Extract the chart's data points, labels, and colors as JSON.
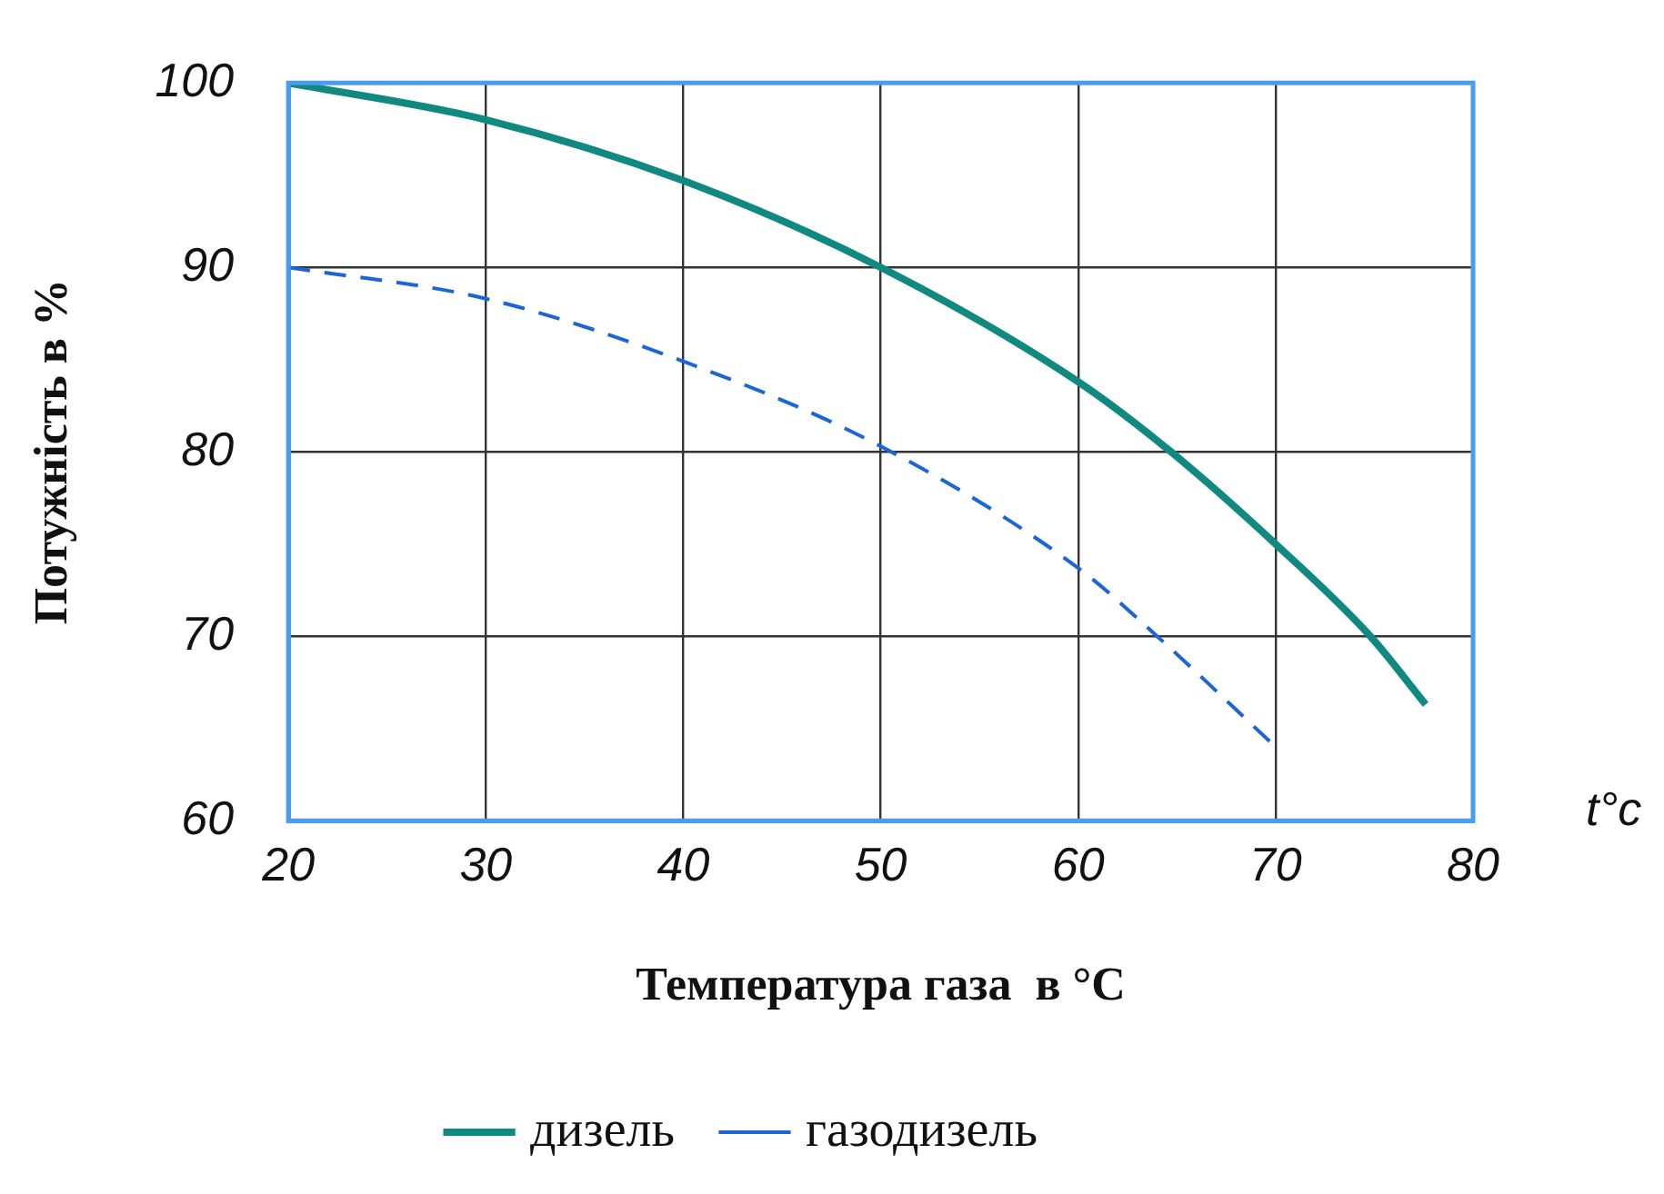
{
  "chart_data": {
    "type": "line",
    "xlabel": "Температура газа  в °C",
    "ylabel": "Потужність в %",
    "annotations": [
      "t°c"
    ],
    "xlim": [
      20,
      80
    ],
    "xticks": [
      20,
      30,
      40,
      50,
      60,
      70,
      80
    ],
    "ylim": [
      60,
      100
    ],
    "yticks": [
      60,
      70,
      80,
      90,
      100
    ],
    "grid": true,
    "legend": "bottom",
    "marker": "none",
    "series": [
      {
        "name": "дизель",
        "color": "#108a80",
        "line_style": "solid",
        "x": [
          20,
          30,
          40,
          50,
          60,
          64.7,
          70,
          74.8,
          77.6
        ],
        "values": [
          100,
          98.0,
          94.7,
          90,
          83.8,
          80,
          75.0,
          70,
          66.3
        ]
      },
      {
        "name": "газодизель",
        "color": "#1a66d9",
        "line_style": "dashed",
        "x": [
          20,
          30,
          40,
          50,
          60,
          64.0,
          70
        ],
        "values": [
          90,
          88.3,
          84.9,
          80.3,
          73.7,
          70,
          64.0
        ]
      }
    ]
  }
}
